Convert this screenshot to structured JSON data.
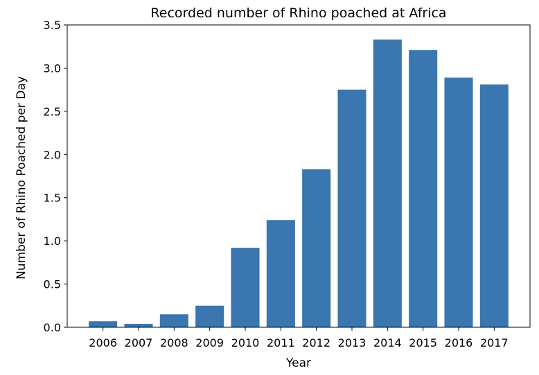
{
  "chart_data": {
    "type": "bar",
    "title": "Recorded number of Rhino poached at Africa",
    "xlabel": "Year",
    "ylabel": "Number of Rhino Poached per Day",
    "categories": [
      "2006",
      "2007",
      "2008",
      "2009",
      "2010",
      "2011",
      "2012",
      "2013",
      "2014",
      "2015",
      "2016",
      "2017"
    ],
    "values": [
      0.07,
      0.04,
      0.15,
      0.25,
      0.92,
      1.24,
      1.83,
      2.75,
      3.33,
      3.21,
      2.89,
      2.81
    ],
    "ylim": [
      0,
      3.5
    ],
    "yticks": [
      "0.0",
      "0.5",
      "1.0",
      "1.5",
      "2.0",
      "2.5",
      "3.0",
      "3.5"
    ],
    "grid": false,
    "legend": "none",
    "bar_color": "#3a76af"
  }
}
